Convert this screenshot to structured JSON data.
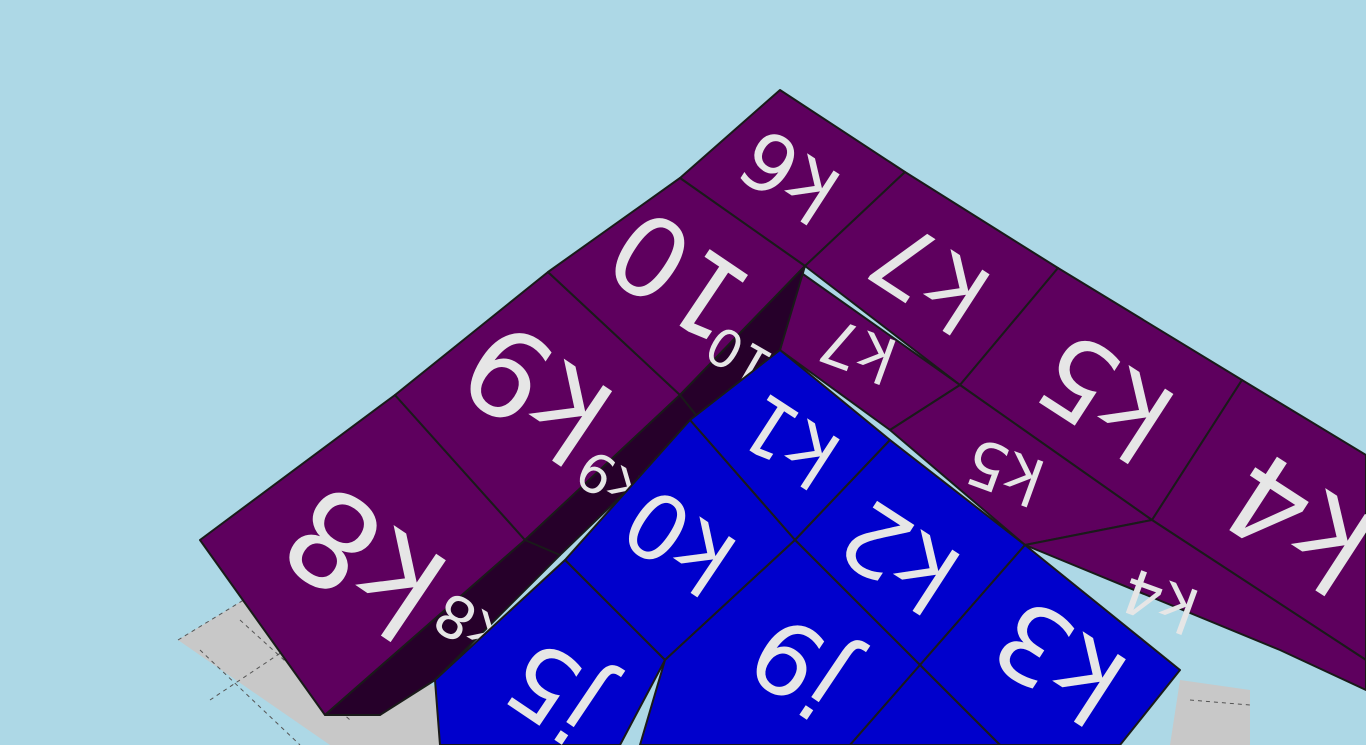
{
  "scene": {
    "background": "#ADD8E6",
    "floor_color": "#C8C8C8",
    "colors": {
      "purple_top": "#5E005E",
      "purple_side": "#3E003E",
      "purple_dark": "#26002A",
      "blue_top": "#0000CC",
      "text": "#E6E6E6"
    }
  },
  "tiles": {
    "k8": "k8",
    "k9": "k9",
    "k10": "10",
    "k6": "k6",
    "k7": "k7",
    "k5": "k5",
    "k4": "k4",
    "side_k8": "k8",
    "side_k9": "k9",
    "side_k10": "10",
    "side_k7": "k7",
    "side_k5": "k5",
    "side_k4": "k4",
    "k1": "k1",
    "k0": "k0",
    "k2": "k2",
    "k3": "k3",
    "j5": "j5",
    "j9": "j9"
  }
}
